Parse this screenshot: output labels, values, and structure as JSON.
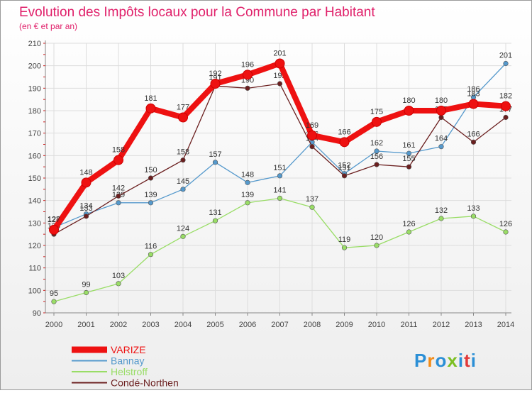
{
  "chart_data": {
    "type": "line",
    "title": "Evolution des Impôts locaux pour la Commune par Habitant",
    "subtitle": "(en € et par an)",
    "x": [
      "2000",
      "2001",
      "2002",
      "2003",
      "2004",
      "2005",
      "2006",
      "2007",
      "2008",
      "2009",
      "2010",
      "2011",
      "2012",
      "2013",
      "2014"
    ],
    "yticks": [
      90,
      100,
      110,
      120,
      130,
      140,
      150,
      160,
      170,
      180,
      190,
      200,
      210
    ],
    "ylim": [
      90,
      210
    ],
    "grid": true,
    "legend_position": "bottom-left",
    "series": [
      {
        "name": "VARIZE",
        "color": "#ee1111",
        "values": [
          127,
          148,
          158,
          181,
          177,
          192,
          196,
          201,
          169,
          166,
          175,
          180,
          180,
          183,
          182
        ]
      },
      {
        "name": "Bannay",
        "color": "#5599cc",
        "values": [
          128,
          134,
          139,
          139,
          145,
          157,
          148,
          151,
          166,
          152,
          162,
          161,
          164,
          186,
          201
        ]
      },
      {
        "name": "Helstroff",
        "color": "#99dd66",
        "values": [
          95,
          99,
          103,
          116,
          124,
          131,
          139,
          141,
          137,
          119,
          120,
          126,
          132,
          133,
          126
        ]
      },
      {
        "name": "Condé-Northen",
        "color": "#6b1f1f",
        "values": [
          125,
          133,
          142,
          150,
          158,
          191,
          190,
          192,
          164,
          151,
          156,
          155,
          177,
          166,
          177
        ]
      }
    ]
  },
  "brand": {
    "logo_text": "Proxiti",
    "letter_colors": [
      "#2b8fd6",
      "#f28c18",
      "#2b8fd6",
      "#7bbf22",
      "#2b8fd6",
      "#e23a3a",
      "#2b8fd6"
    ]
  }
}
